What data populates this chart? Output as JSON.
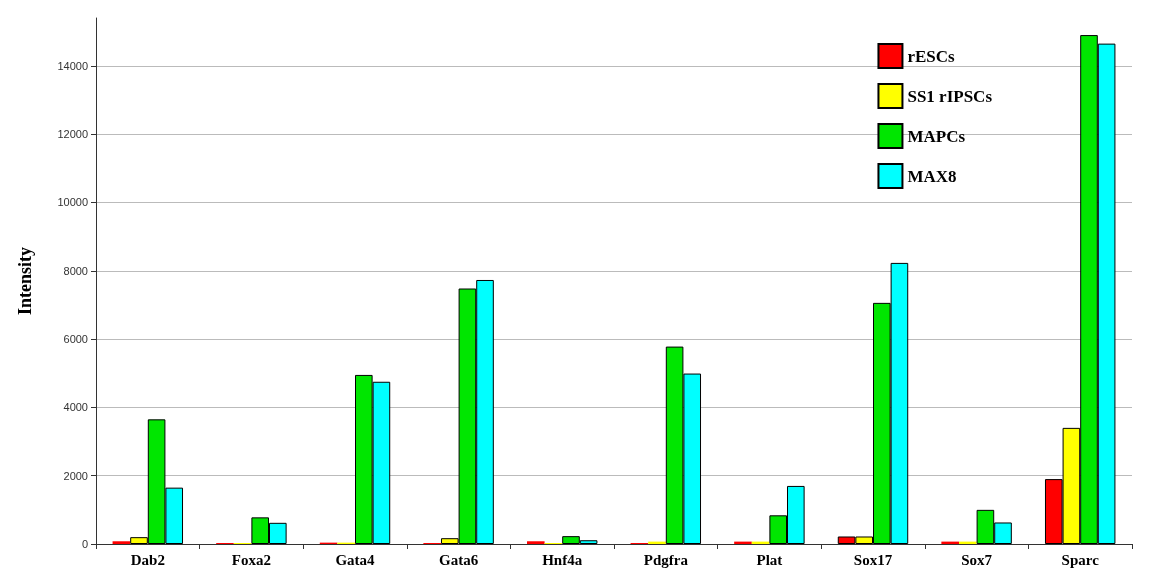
{
  "chart_data": {
    "type": "bar",
    "ylabel": "Intensity",
    "categories": [
      "Dab2",
      "Foxa2",
      "Gata4",
      "Gata6",
      "Hnf4a",
      "Pdgfra",
      "Plat",
      "Sox17",
      "Sox7",
      "Sparc"
    ],
    "series": [
      {
        "name": "rESCs",
        "color": "#ff0000",
        "values": [
          80,
          30,
          40,
          30,
          80,
          30,
          70,
          220,
          70,
          1900
        ]
      },
      {
        "name": "SS1 rIPSCs",
        "color": "#ffff00",
        "values": [
          200,
          30,
          40,
          170,
          30,
          70,
          70,
          220,
          70,
          3400
        ]
      },
      {
        "name": "MAPCs",
        "color": "#00e600",
        "values": [
          3650,
          780,
          4950,
          7480,
          230,
          5780,
          840,
          7060,
          1000,
          14900
        ]
      },
      {
        "name": "MAX8",
        "color": "#00ffff",
        "values": [
          1650,
          620,
          4750,
          7730,
          110,
          4990,
          1700,
          8230,
          630,
          14650
        ]
      }
    ],
    "ylim": [
      0,
      15400
    ],
    "yticks": [
      0,
      2000,
      4000,
      6000,
      8000,
      10000,
      12000,
      14000
    ],
    "grid": "y",
    "legend": "top right"
  }
}
